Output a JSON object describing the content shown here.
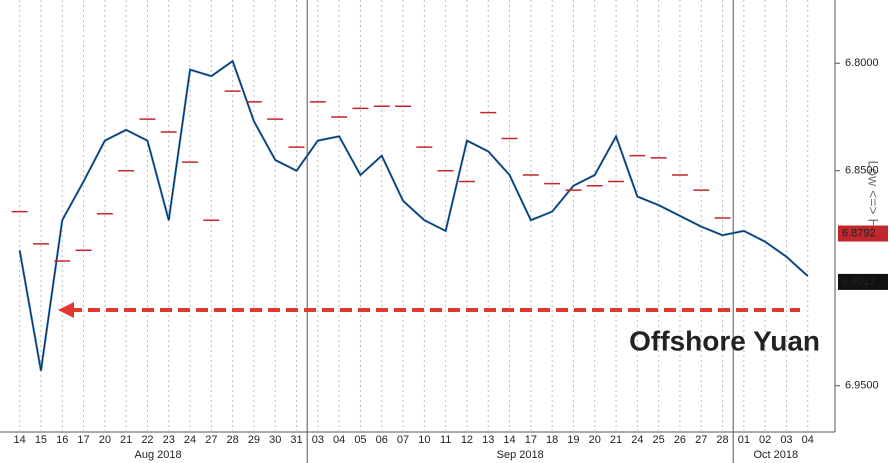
{
  "chart_data": {
    "type": "line",
    "categories": [
      "14",
      "15",
      "16",
      "17",
      "20",
      "21",
      "22",
      "23",
      "24",
      "27",
      "28",
      "29",
      "30",
      "31",
      "03",
      "04",
      "05",
      "06",
      "07",
      "10",
      "11",
      "12",
      "13",
      "14",
      "17",
      "18",
      "19",
      "20",
      "21",
      "24",
      "25",
      "26",
      "27",
      "28",
      "01",
      "02",
      "03",
      "04"
    ],
    "month_labels": [
      "Aug 2018",
      "Sep 2018",
      "Oct 2018"
    ],
    "series": [
      {
        "color": "#1a1a1a",
        "values": [
          6.887,
          6.943,
          6.873,
          6.855,
          6.836,
          6.831,
          6.836,
          6.873,
          6.803,
          6.806,
          6.799,
          6.827,
          6.845,
          6.85,
          6.836,
          6.834,
          6.852,
          6.843,
          6.864,
          6.873,
          6.878,
          6.836,
          6.841,
          6.852,
          6.873,
          6.869,
          6.857,
          6.852,
          6.834,
          6.862,
          6.866,
          6.871,
          6.876,
          6.88,
          6.878,
          6.883,
          6.89,
          6.899
        ]
      },
      {
        "color": "#c0282d",
        "values": [
          6.869,
          6.884,
          6.892,
          6.887,
          6.87,
          6.85,
          6.826,
          6.832,
          6.846,
          6.873,
          6.813,
          6.818,
          6.826,
          6.839,
          6.818,
          6.825,
          6.821,
          6.82,
          6.82,
          6.839,
          6.85,
          6.855,
          6.823,
          6.835,
          6.852,
          6.856,
          6.859,
          6.857,
          6.855,
          6.843,
          6.844,
          6.852,
          6.859,
          6.872,
          null,
          null,
          null,
          null
        ]
      }
    ],
    "ylim": [
      6.9715,
      6.7706
    ],
    "yticks": [
      {
        "value": 6.8,
        "label": "6.8000"
      },
      {
        "value": 6.85,
        "label": "6.8500"
      },
      {
        "value": 6.95,
        "label": "6.9500"
      }
    ],
    "price_labels": [
      {
        "value": 6.8792,
        "label": "6.8792",
        "color": "#c0282d"
      },
      {
        "value": 6.9017,
        "label": "6.9017",
        "color": "#111111"
      }
    ],
    "axis_title": "Low <=> Hig",
    "annotation": "Offshore Yuan",
    "annotation_color": "#1f6fc5"
  }
}
